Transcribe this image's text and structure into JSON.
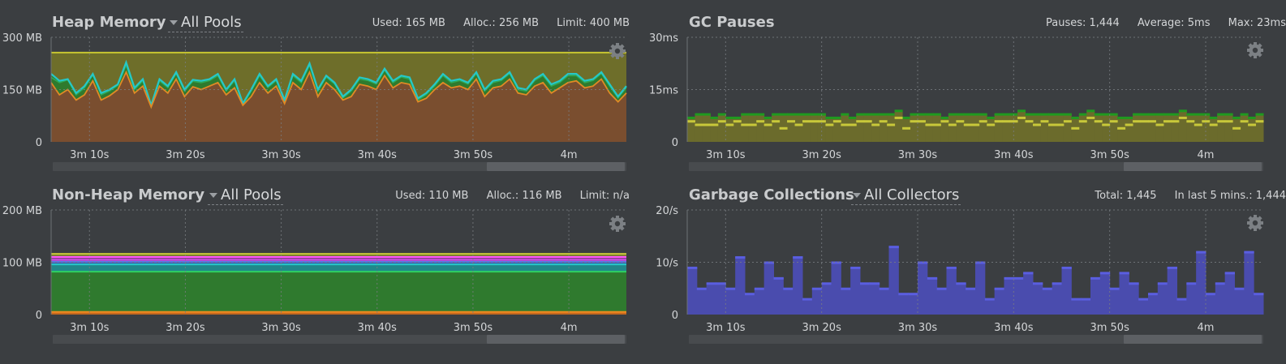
{
  "colors": {
    "background": "#3b3e41",
    "grid": "#7a7e82",
    "heap_limit": "#c7c531",
    "heap_alloc_fill": "#6e6e2a",
    "heap_used_line": "#25c8c8",
    "heap_green_fill": "#2f7a2e",
    "heap_orange_line": "#e08a25",
    "heap_orange_fill": "#7a4e2f",
    "gc_green": "#1f9a1f",
    "gc_yellow": "#c8c83a",
    "gc_fill": "#6b6b2c",
    "collections_fill": "#4a4cae",
    "collections_top": "#5a5ee0",
    "scrollbar_track": "#484b4e",
    "scrollbar_thumb": "#5d6064"
  },
  "panels": {
    "heap": {
      "title": "Heap Memory",
      "pool_select": "All Pools",
      "stats": [
        "Used: 165 MB",
        "Alloc.: 256 MB",
        "Limit: 400 MB"
      ],
      "settings_icon": "gear-icon"
    },
    "gc_pauses": {
      "title": "GC Pauses",
      "stats": [
        "Pauses: 1,444",
        "Average: 5ms",
        "Max: 23ms"
      ],
      "settings_icon": "gear-icon"
    },
    "nonheap": {
      "title": "Non-Heap Memory",
      "pool_select": "All Pools",
      "stats": [
        "Used: 110 MB",
        "Alloc.: 116 MB",
        "Limit: n/a"
      ],
      "settings_icon": "gear-icon"
    },
    "gc_collections": {
      "title": "Garbage Collections",
      "pool_select": "All Collectors",
      "stats": [
        "Total: 1,445",
        "In last 5 mins.: 1,444"
      ],
      "settings_icon": "gear-icon"
    }
  },
  "chart_data": [
    {
      "id": "heap",
      "type": "area",
      "x_ticks": [
        "3m 10s",
        "3m 20s",
        "3m 30s",
        "3m 40s",
        "3m 50s",
        "4m"
      ],
      "x_tick_secs": [
        190,
        200,
        210,
        220,
        230,
        240
      ],
      "xlim": [
        186,
        246
      ],
      "y_ticks": [
        "0",
        "150 MB",
        "300 MB"
      ],
      "y_tick_values": [
        0,
        150,
        300
      ],
      "ylim": [
        0,
        300
      ],
      "unit": "MB",
      "grid": true,
      "limit_line": 256,
      "series": [
        {
          "values": [
            195,
            175,
            180,
            140,
            160,
            195,
            140,
            150,
            165,
            228,
            155,
            180,
            105,
            180,
            160,
            200,
            150,
            178,
            175,
            180,
            195,
            150,
            180,
            110,
            150,
            195,
            160,
            180,
            120,
            195,
            175,
            225,
            150,
            190,
            170,
            130,
            150,
            185,
            180,
            170,
            210,
            175,
            190,
            185,
            125,
            140,
            165,
            195,
            175,
            180,
            170,
            200,
            150,
            175,
            180,
            200,
            155,
            150,
            180,
            195,
            165,
            175,
            195,
            195,
            175,
            180,
            200,
            165,
            130,
            160
          ]
        },
        {
          "values": [
            185,
            170,
            178,
            135,
            155,
            192,
            135,
            146,
            162,
            220,
            150,
            175,
            100,
            175,
            156,
            196,
            146,
            174,
            170,
            176,
            190,
            146,
            176,
            106,
            146,
            190,
            156,
            176,
            116,
            190,
            170,
            220,
            146,
            186,
            166,
            126,
            146,
            180,
            176,
            166,
            206,
            170,
            186,
            180,
            120,
            136,
            160,
            190,
            170,
            176,
            166,
            196,
            146,
            170,
            176,
            196,
            150,
            146,
            176,
            190,
            160,
            170,
            190,
            190,
            170,
            176,
            196,
            160,
            126,
            156
          ]
        },
        {
          "values": [
            170,
            135,
            150,
            120,
            135,
            175,
            120,
            132,
            150,
            200,
            140,
            160,
            100,
            160,
            140,
            180,
            130,
            158,
            150,
            160,
            170,
            135,
            155,
            105,
            130,
            170,
            140,
            160,
            110,
            170,
            150,
            200,
            130,
            170,
            150,
            120,
            130,
            165,
            160,
            150,
            190,
            155,
            170,
            165,
            115,
            125,
            150,
            170,
            155,
            160,
            150,
            180,
            130,
            155,
            160,
            180,
            140,
            135,
            160,
            170,
            140,
            155,
            170,
            175,
            155,
            160,
            180,
            140,
            115,
            140
          ]
        }
      ]
    },
    {
      "id": "gc_pauses",
      "type": "bar",
      "x_ticks": [
        "3m 10s",
        "3m 20s",
        "3m 30s",
        "3m 40s",
        "3m 50s",
        "4m"
      ],
      "x_tick_secs": [
        190,
        200,
        210,
        220,
        230,
        240
      ],
      "xlim": [
        186,
        246
      ],
      "y_ticks": [
        "0",
        "15ms",
        "30ms"
      ],
      "y_tick_values": [
        0,
        15,
        30
      ],
      "ylim": [
        0,
        30
      ],
      "unit": "ms",
      "grid": true,
      "series": [
        {
          "values": [
            7,
            8,
            8,
            7,
            8,
            7,
            7,
            8,
            8,
            8,
            7,
            8,
            8,
            8,
            8,
            8,
            8,
            8,
            7,
            7,
            8,
            7,
            8,
            8,
            8,
            8,
            8,
            9,
            7,
            8,
            8,
            8,
            8,
            7,
            8,
            8,
            8,
            8,
            8,
            7,
            8,
            8,
            8,
            9,
            8,
            8,
            8,
            8,
            8,
            8,
            7,
            8,
            9,
            8,
            8,
            8,
            7,
            7,
            8,
            8,
            8,
            8,
            8,
            8,
            9,
            8,
            8,
            8,
            7,
            8,
            8,
            7,
            8,
            7,
            8
          ]
        },
        {
          "values": [
            6,
            5,
            5,
            5,
            6,
            5,
            6,
            5,
            5,
            6,
            5,
            6,
            4,
            6,
            5,
            6,
            6,
            6,
            5,
            6,
            5,
            5,
            6,
            6,
            5,
            6,
            5,
            7,
            4,
            6,
            6,
            5,
            5,
            6,
            5,
            6,
            5,
            5,
            6,
            5,
            6,
            6,
            6,
            7,
            6,
            5,
            6,
            5,
            5,
            6,
            4,
            6,
            7,
            6,
            5,
            6,
            4,
            5,
            6,
            6,
            6,
            5,
            6,
            6,
            7,
            6,
            5,
            6,
            5,
            6,
            6,
            4,
            6,
            5,
            6
          ]
        }
      ]
    },
    {
      "id": "nonheap",
      "type": "area",
      "x_ticks": [
        "3m 10s",
        "3m 20s",
        "3m 30s",
        "3m 40s",
        "3m 50s",
        "4m"
      ],
      "x_tick_secs": [
        190,
        200,
        210,
        220,
        230,
        240
      ],
      "xlim": [
        186,
        246
      ],
      "y_ticks": [
        "0",
        "100 MB",
        "200 MB"
      ],
      "y_tick_values": [
        0,
        100,
        200
      ],
      "ylim": [
        0,
        200
      ],
      "unit": "MB",
      "grid": true,
      "series": [
        {
          "values": [
            116
          ]
        },
        {
          "values": [
            110
          ]
        },
        {
          "values": [
            105
          ]
        },
        {
          "values": [
            101
          ]
        },
        {
          "values": [
            96
          ]
        },
        {
          "values": [
            82
          ]
        },
        {
          "values": [
            5
          ]
        }
      ]
    },
    {
      "id": "gc_collections",
      "type": "bar",
      "x_ticks": [
        "3m 10s",
        "3m 20s",
        "3m 30s",
        "3m 40s",
        "3m 50s",
        "4m"
      ],
      "x_tick_secs": [
        190,
        200,
        210,
        220,
        230,
        240
      ],
      "xlim": [
        186,
        246
      ],
      "y_ticks": [
        "0",
        "10/s",
        "20/s"
      ],
      "y_tick_values": [
        0,
        10,
        20
      ],
      "ylim": [
        0,
        20
      ],
      "unit": "/s",
      "grid": true,
      "series": [
        {
          "values": [
            9,
            5,
            6,
            6,
            5,
            11,
            4,
            5,
            10,
            7,
            5,
            11,
            3,
            5,
            6,
            10,
            5,
            9,
            6,
            6,
            5,
            13,
            4,
            4,
            10,
            7,
            5,
            9,
            6,
            5,
            10,
            3,
            5,
            7,
            7,
            8,
            6,
            5,
            6,
            9,
            3,
            3,
            7,
            8,
            5,
            8,
            6,
            3,
            4,
            6,
            9,
            3,
            6,
            12,
            4,
            6,
            8,
            5,
            12,
            4
          ]
        }
      ]
    }
  ]
}
